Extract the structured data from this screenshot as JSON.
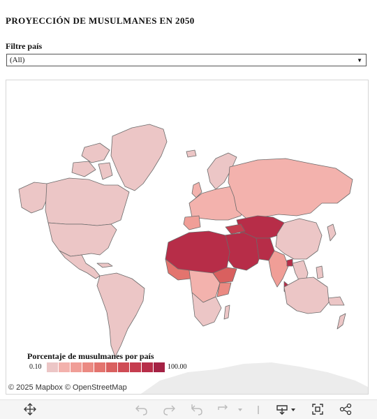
{
  "title": "PROYECCIÓN DE MUSULMANES EN 2050",
  "filter": {
    "label": "Filtre país",
    "value": "(All)"
  },
  "map": {
    "attribution_mapbox": "© 2025 Mapbox",
    "attribution_osm": "© OpenStreetMap",
    "ocean_color": "#ffffff",
    "border_color": "#6b6b6b"
  },
  "legend": {
    "title": "Porcentaje de musulmanes por país",
    "min_label": "0.10",
    "max_label": "100.00",
    "colors": [
      "#ecc6c6",
      "#f3b2ad",
      "#f09e97",
      "#eb8a82",
      "#e3746e",
      "#d9605f",
      "#cf4c55",
      "#c53d4f",
      "#b72d48",
      "#a42244"
    ]
  },
  "toolbar": {
    "icons": [
      "move-icon",
      "undo-icon",
      "redo-icon",
      "revert-icon",
      "refresh-icon",
      "download-icon",
      "fullscreen-icon",
      "share-icon"
    ]
  }
}
